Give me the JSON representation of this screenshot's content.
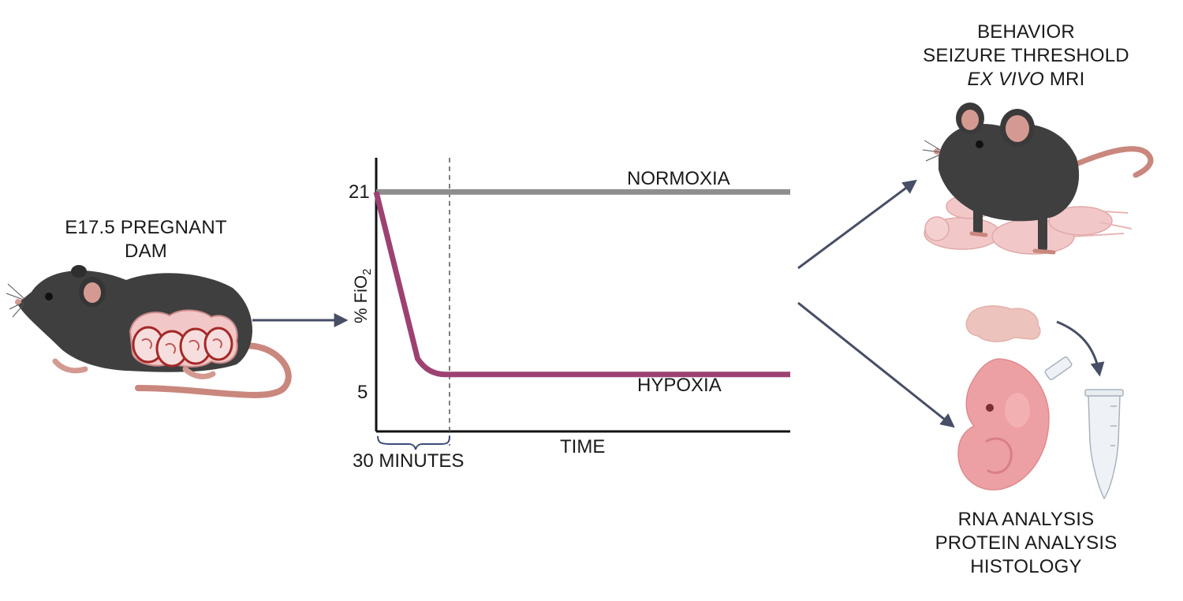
{
  "dam_label": {
    "line1": "E17.5 PREGNANT",
    "line2": "DAM"
  },
  "chart": {
    "ylabel_prefix": "% FiO",
    "ylabel_sub": "2",
    "xlabel": "TIME",
    "bracket_label": "30 MINUTES",
    "tick_21": "21",
    "tick_5": "5",
    "normoxia_label": "NORMOXIA",
    "hypoxia_label": "HYPOXIA",
    "normoxia_color": "#8e8e8e",
    "hypoxia_color": "#9c4272"
  },
  "chart_data": {
    "type": "line",
    "xlabel": "TIME",
    "ylabel": "% FiO2",
    "series": [
      {
        "name": "NORMOXIA",
        "x_minutes": [
          0,
          180
        ],
        "y": [
          21,
          21
        ]
      },
      {
        "name": "HYPOXIA",
        "x_minutes": [
          0,
          30,
          180
        ],
        "y": [
          21,
          5,
          5
        ]
      }
    ],
    "annotations": [
      "30 MINUTES"
    ],
    "ylim": [
      0,
      24
    ]
  },
  "top_right_label": {
    "line1": "BEHAVIOR",
    "line2": "SEIZURE THRESHOLD",
    "line3_italic": "EX VIVO",
    "line3_rest": " MRI"
  },
  "bottom_right_label": {
    "line1": "RNA ANALYSIS",
    "line2": "PROTEIN ANALYSIS",
    "line3": "HISTOLOGY"
  },
  "colors": {
    "mouse_body": "#3f3f3f",
    "mouse_pink": "#d49a92",
    "pup_pink": "#f2c7c7",
    "embryo_pink": "#eda0a3",
    "arrow": "#474e66"
  },
  "icons": [
    "pregnant-mouse-icon",
    "mother-mouse-with-pups-icon",
    "brain-icon",
    "embryo-icon",
    "microtube-icon"
  ]
}
